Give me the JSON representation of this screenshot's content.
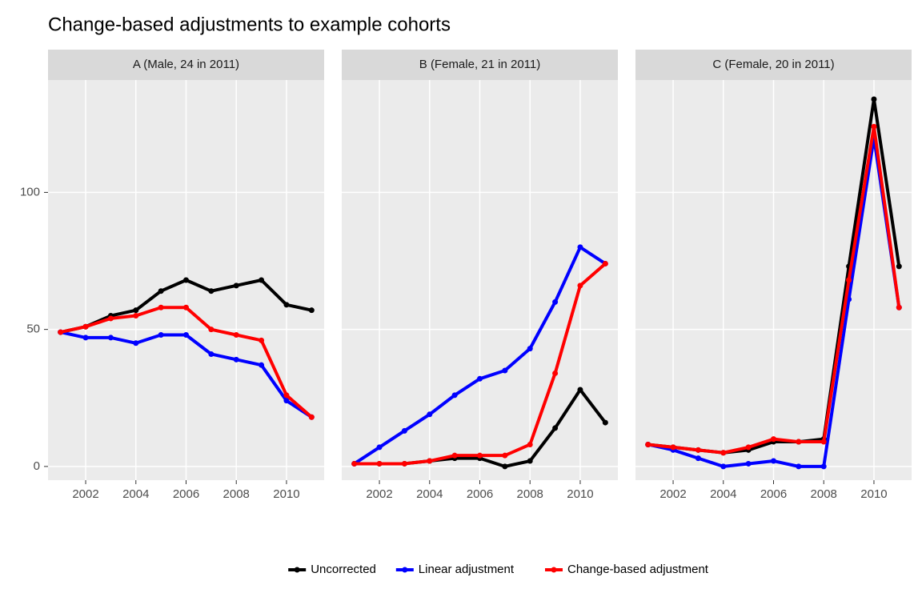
{
  "chart_data": {
    "type": "line",
    "title": "Change-based adjustments to example cohorts",
    "x": [
      2001,
      2002,
      2003,
      2004,
      2005,
      2006,
      2007,
      2008,
      2009,
      2010,
      2011
    ],
    "xlim": [
      2000.5,
      2011.5
    ],
    "xticks": [
      2002,
      2004,
      2006,
      2008,
      2010
    ],
    "ylim": [
      -5,
      141
    ],
    "yticks": [
      0,
      50,
      100
    ],
    "grid": true,
    "legend": "bottom",
    "series": [
      {
        "name": "Uncorrected",
        "color": "#000000"
      },
      {
        "name": "Linear adjustment",
        "color": "#0000ff"
      },
      {
        "name": "Change-based adjustment",
        "color": "#ff0000"
      }
    ],
    "panels": [
      {
        "title": "A (Male, 24 in 2011)",
        "values": [
          [
            49,
            51,
            55,
            57,
            64,
            68,
            64,
            66,
            68,
            59,
            57
          ],
          [
            49,
            47,
            47,
            45,
            48,
            48,
            41,
            39,
            37,
            24,
            18
          ],
          [
            49,
            51,
            54,
            55,
            58,
            58,
            50,
            48,
            46,
            26,
            18
          ]
        ]
      },
      {
        "title": "B (Female, 21 in 2011)",
        "values": [
          [
            1,
            1,
            1,
            2,
            3,
            3,
            0,
            2,
            14,
            28,
            16
          ],
          [
            1,
            7,
            13,
            19,
            26,
            32,
            35,
            43,
            60,
            80,
            74
          ],
          [
            1,
            1,
            1,
            2,
            4,
            4,
            4,
            8,
            34,
            66,
            74
          ]
        ]
      },
      {
        "title": "C (Female, 20 in 2011)",
        "values": [
          [
            8,
            7,
            6,
            5,
            6,
            9,
            9,
            10,
            73,
            134,
            73
          ],
          [
            8,
            6,
            3,
            0,
            1,
            2,
            0,
            0,
            61,
            120,
            58
          ],
          [
            8,
            7,
            6,
            5,
            7,
            10,
            9,
            9,
            68,
            124,
            58
          ]
        ]
      }
    ]
  }
}
